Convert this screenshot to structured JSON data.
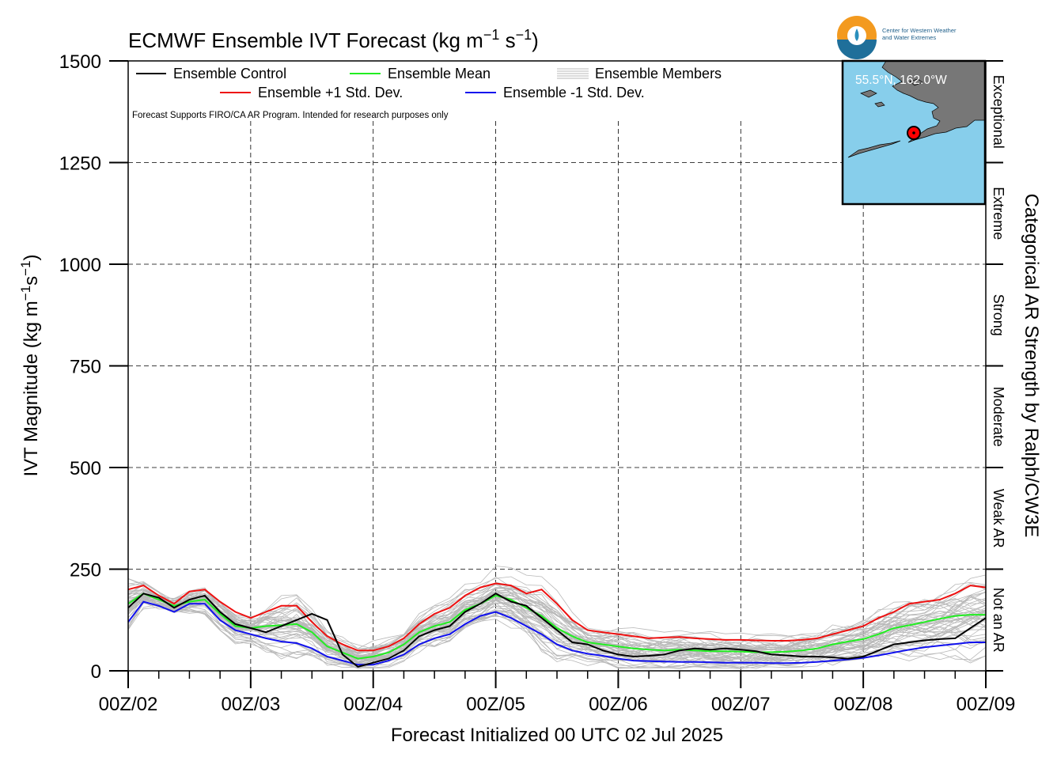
{
  "logo": {
    "org_line1": "Center for Western Weather",
    "org_line2": "and Water Extremes"
  },
  "chart_data": {
    "type": "line",
    "title": "ECMWF Ensemble IVT Forecast (kg m",
    "title_sup1": "−1",
    "title_mid": " s",
    "title_sup2": "−1",
    "title_end": ")",
    "ylabel": "IVT Magnitude (kg m",
    "ylabel_sup1": "−1",
    "ylabel_mid": "s",
    "ylabel_sup2": "−1",
    "ylabel_end": ")",
    "xlabel": "Forecast Initialized 00 UTC 02 Jul 2025",
    "right_label": "Categorical AR Strength by Ralph/CW3E",
    "note": "Forecast Supports FIRO/CA AR Program. Intended for research purposes only",
    "ylim": [
      0,
      1500
    ],
    "xlim_hours": [
      0,
      168
    ],
    "y_ticks": [
      0,
      250,
      500,
      750,
      1000,
      1250,
      1500
    ],
    "x_ticks": [
      {
        "h": 0,
        "label": "00Z/02"
      },
      {
        "h": 24,
        "label": "00Z/03"
      },
      {
        "h": 48,
        "label": "00Z/04"
      },
      {
        "h": 72,
        "label": "00Z/05"
      },
      {
        "h": 96,
        "label": "00Z/06"
      },
      {
        "h": 120,
        "label": "00Z/07"
      },
      {
        "h": 144,
        "label": "00Z/08"
      },
      {
        "h": 168,
        "label": "00Z/09"
      }
    ],
    "grid": true,
    "categories": [
      {
        "label": "Not an AR",
        "range": [
          0,
          250
        ]
      },
      {
        "label": "Weak AR",
        "range": [
          250,
          500
        ]
      },
      {
        "label": "Moderate",
        "range": [
          500,
          750
        ]
      },
      {
        "label": "Strong",
        "range": [
          750,
          1000
        ]
      },
      {
        "label": "Extreme",
        "range": [
          1000,
          1250
        ]
      },
      {
        "label": "Exceptional",
        "range": [
          1250,
          1500
        ]
      }
    ],
    "legend": {
      "placement": "top-left",
      "items": [
        {
          "name": "Ensemble Control",
          "color": "#000000"
        },
        {
          "name": "Ensemble Mean",
          "color": "#22ee22"
        },
        {
          "name": "Ensemble Members",
          "color": "#b8b8b8"
        },
        {
          "name": "Ensemble +1 Std. Dev.",
          "color": "#ee1111"
        },
        {
          "name": "Ensemble -1 Std. Dev.",
          "color": "#1111ee"
        }
      ]
    },
    "inset_map": {
      "location_label": "55.5°N, 162.0°W",
      "lat": 55.5,
      "lon": -162.0,
      "ocean_color": "#87ceeb",
      "land_color": "#777777"
    },
    "series": [
      {
        "name": "Ensemble Control",
        "color": "#000000",
        "x": [
          0,
          3,
          6,
          9,
          12,
          15,
          18,
          21,
          24,
          27,
          30,
          33,
          36,
          39,
          42,
          45,
          48,
          51,
          54,
          57,
          60,
          63,
          66,
          69,
          72,
          75,
          78,
          81,
          84,
          87,
          90,
          93,
          96,
          99,
          102,
          105,
          108,
          111,
          114,
          117,
          120,
          123,
          126,
          129,
          132,
          135,
          138,
          141,
          144,
          147,
          150,
          153,
          156,
          159,
          162,
          165,
          168
        ],
        "y": [
          155,
          190,
          180,
          155,
          175,
          185,
          145,
          115,
          105,
          95,
          110,
          125,
          140,
          125,
          40,
          10,
          20,
          30,
          50,
          85,
          100,
          110,
          145,
          165,
          190,
          170,
          160,
          130,
          100,
          70,
          65,
          50,
          40,
          35,
          37,
          40,
          50,
          55,
          52,
          55,
          52,
          48,
          40,
          38,
          35,
          35,
          33,
          30,
          35,
          50,
          65,
          70,
          75,
          78,
          80,
          105,
          130
        ]
      },
      {
        "name": "Ensemble Mean",
        "color": "#22ee22",
        "x": [
          0,
          3,
          6,
          9,
          12,
          15,
          18,
          21,
          24,
          27,
          30,
          33,
          36,
          39,
          42,
          45,
          48,
          51,
          54,
          57,
          60,
          63,
          66,
          69,
          72,
          75,
          78,
          81,
          84,
          87,
          90,
          93,
          96,
          99,
          102,
          105,
          108,
          111,
          114,
          117,
          120,
          123,
          126,
          129,
          132,
          135,
          138,
          141,
          144,
          147,
          150,
          153,
          156,
          159,
          162,
          165,
          168
        ],
        "y": [
          165,
          190,
          175,
          160,
          170,
          175,
          140,
          110,
          105,
          110,
          112,
          115,
          95,
          60,
          45,
          30,
          35,
          45,
          65,
          95,
          110,
          120,
          150,
          165,
          185,
          175,
          155,
          135,
          105,
          85,
          70,
          65,
          60,
          55,
          52,
          50,
          52,
          50,
          48,
          48,
          47,
          46,
          46,
          47,
          50,
          55,
          65,
          72,
          78,
          90,
          105,
          112,
          120,
          128,
          135,
          138,
          138
        ]
      },
      {
        "name": "Ensemble +1 Std. Dev.",
        "color": "#ee1111",
        "x": [
          0,
          3,
          6,
          9,
          12,
          15,
          18,
          21,
          24,
          27,
          30,
          33,
          36,
          39,
          42,
          45,
          48,
          51,
          54,
          57,
          60,
          63,
          66,
          69,
          72,
          75,
          78,
          81,
          84,
          87,
          90,
          93,
          96,
          99,
          102,
          105,
          108,
          111,
          114,
          117,
          120,
          123,
          126,
          129,
          132,
          135,
          138,
          141,
          144,
          147,
          150,
          153,
          156,
          159,
          162,
          165,
          168
        ],
        "y": [
          200,
          210,
          185,
          165,
          195,
          200,
          170,
          145,
          130,
          145,
          160,
          160,
          120,
          85,
          65,
          50,
          50,
          60,
          80,
          115,
          140,
          155,
          185,
          205,
          215,
          210,
          190,
          200,
          165,
          125,
          100,
          95,
          90,
          85,
          80,
          82,
          83,
          80,
          78,
          76,
          76,
          75,
          74,
          74,
          76,
          80,
          90,
          100,
          110,
          130,
          145,
          165,
          170,
          175,
          190,
          210,
          205
        ]
      },
      {
        "name": "Ensemble -1 Std. Dev.",
        "color": "#1111ee",
        "x": [
          0,
          3,
          6,
          9,
          12,
          15,
          18,
          21,
          24,
          27,
          30,
          33,
          36,
          39,
          42,
          45,
          48,
          51,
          54,
          57,
          60,
          63,
          66,
          69,
          72,
          75,
          78,
          81,
          84,
          87,
          90,
          93,
          96,
          99,
          102,
          105,
          108,
          111,
          114,
          117,
          120,
          123,
          126,
          129,
          132,
          135,
          138,
          141,
          144,
          147,
          150,
          153,
          156,
          159,
          162,
          165,
          168
        ],
        "y": [
          120,
          170,
          160,
          145,
          165,
          165,
          125,
          100,
          90,
          80,
          72,
          68,
          55,
          35,
          25,
          15,
          15,
          25,
          40,
          65,
          80,
          90,
          115,
          135,
          145,
          130,
          110,
          90,
          65,
          50,
          42,
          37,
          30,
          25,
          24,
          23,
          22,
          22,
          21,
          20,
          20,
          20,
          19,
          19,
          20,
          22,
          25,
          28,
          32,
          38,
          45,
          52,
          58,
          62,
          66,
          70,
          70
        ]
      }
    ]
  }
}
